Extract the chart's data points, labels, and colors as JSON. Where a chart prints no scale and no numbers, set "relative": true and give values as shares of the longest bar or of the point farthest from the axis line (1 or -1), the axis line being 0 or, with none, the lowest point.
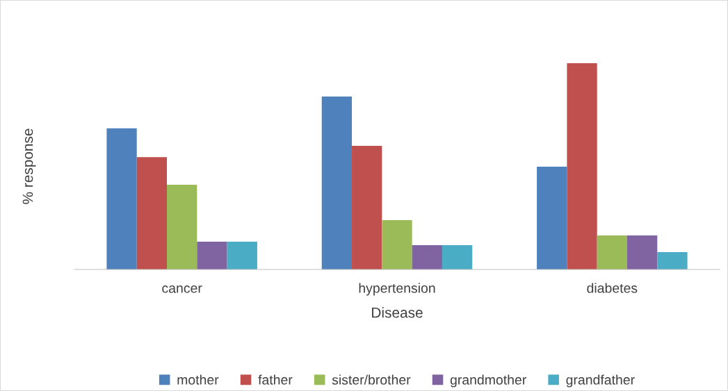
{
  "chart_data": {
    "type": "bar",
    "relative": true,
    "xlabel": "Disease",
    "ylabel": "% response",
    "categories": [
      "cancer",
      "hypertension",
      "diabetes"
    ],
    "series": [
      {
        "name": "mother",
        "color": "#4f81bd",
        "values": [
          0.684,
          0.838,
          0.498
        ]
      },
      {
        "name": "father",
        "color": "#c0504d",
        "values": [
          0.545,
          0.599,
          1.0
        ]
      },
      {
        "name": "sister/brother",
        "color": "#9bbb59",
        "values": [
          0.411,
          0.239,
          0.165
        ]
      },
      {
        "name": "grandmother",
        "color": "#8064a2",
        "values": [
          0.135,
          0.118,
          0.165
        ]
      },
      {
        "name": "grandfather",
        "color": "#4bacc6",
        "values": [
          0.135,
          0.118,
          0.084
        ]
      }
    ],
    "legend": "bottom",
    "grid": false
  }
}
